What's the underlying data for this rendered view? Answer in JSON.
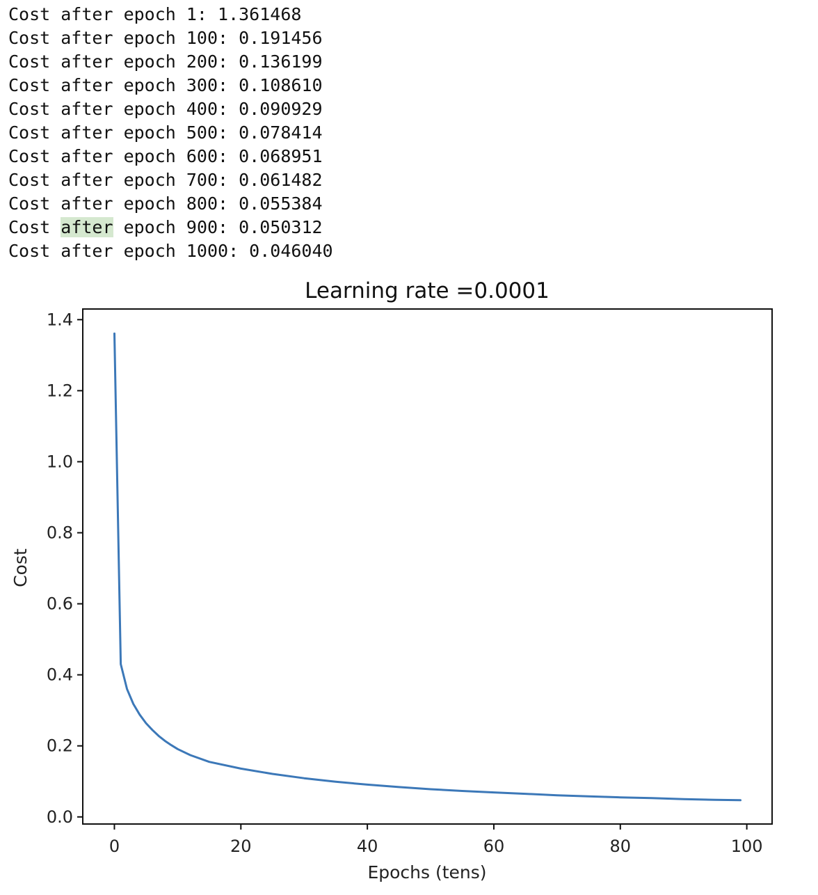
{
  "console": {
    "lines": [
      "Cost after epoch 1: 1.361468",
      "Cost after epoch 100: 0.191456",
      "Cost after epoch 200: 0.136199",
      "Cost after epoch 300: 0.108610",
      "Cost after epoch 400: 0.090929",
      "Cost after epoch 500: 0.078414",
      "Cost after epoch 600: 0.068951",
      "Cost after epoch 700: 0.061482",
      "Cost after epoch 800: 0.055384",
      "Cost after epoch 900: 0.050312",
      "Cost after epoch 1000: 0.046040"
    ],
    "highlight": {
      "line_index": 9,
      "word": "after"
    }
  },
  "chart_data": {
    "type": "line",
    "title": "Learning rate =0.0001",
    "xlabel": "Epochs (tens)",
    "ylabel": "Cost",
    "xlim": [
      -5,
      104
    ],
    "ylim": [
      -0.02,
      1.43
    ],
    "xticks": [
      0,
      20,
      40,
      60,
      80,
      100
    ],
    "xtick_labels": [
      "0",
      "20",
      "40",
      "60",
      "80",
      "100"
    ],
    "yticks": [
      0.0,
      0.2,
      0.4,
      0.6,
      0.8,
      1.0,
      1.2,
      1.4
    ],
    "ytick_labels": [
      "0.0",
      "0.2",
      "0.4",
      "0.6",
      "0.8",
      "1.0",
      "1.2",
      "1.4"
    ],
    "grid": false,
    "series": [
      {
        "color": "#3c78b8",
        "x": [
          0,
          1,
          2,
          3,
          4,
          5,
          6,
          7,
          8,
          9,
          10,
          12,
          15,
          20,
          25,
          30,
          35,
          40,
          45,
          50,
          55,
          60,
          65,
          70,
          75,
          80,
          85,
          90,
          95,
          99
        ],
        "y": [
          1.361,
          0.43,
          0.36,
          0.318,
          0.288,
          0.264,
          0.245,
          0.228,
          0.214,
          0.202,
          0.191,
          0.174,
          0.155,
          0.136,
          0.121,
          0.109,
          0.099,
          0.091,
          0.084,
          0.078,
          0.073,
          0.069,
          0.065,
          0.061,
          0.058,
          0.055,
          0.053,
          0.05,
          0.048,
          0.047
        ]
      }
    ]
  }
}
